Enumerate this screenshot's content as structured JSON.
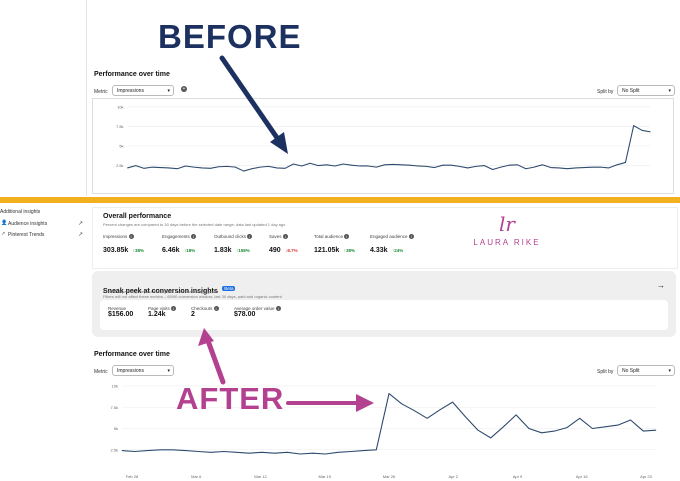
{
  "before_label": "BEFORE",
  "after_label": "AFTER",
  "colors": {
    "before_text": "#1d3160",
    "after_text": "#b4418f",
    "divider": "#f2b01e",
    "line": "#2e4a6e",
    "up": "#1a8a34",
    "down": "#d33333",
    "beta": "#1f6fe0",
    "logo": "#b4418f"
  },
  "top": {
    "title": "Performance over time",
    "metric_label": "Metric",
    "metric_value": "Impressions",
    "split_label": "Split by",
    "split_value": "No Split",
    "y_ticks": [
      "10k",
      "7.5k",
      "5k",
      "2.5k"
    ]
  },
  "sidebar": {
    "heading": "Additional insights",
    "items": [
      {
        "label": "Audience insights",
        "icon": "person-icon"
      },
      {
        "label": "Pinterest Trends",
        "icon": "trend-icon"
      }
    ]
  },
  "overall": {
    "title": "Overall performance",
    "subtitle": "Percent changes are compared to 30 days before the selected date range; data last updated 1 day ago",
    "metrics": [
      {
        "name": "Impressions",
        "value": "303.85k",
        "change": "38%",
        "dir": "up"
      },
      {
        "name": "Engagements",
        "value": "6.46k",
        "change": "18%",
        "dir": "up"
      },
      {
        "name": "Outbound clicks",
        "value": "1.83k",
        "change": "158%",
        "dir": "up"
      },
      {
        "name": "Saves",
        "value": "490",
        "change": "8.7%",
        "dir": "down"
      },
      {
        "name": "Total audience",
        "value": "121.05k",
        "change": "38%",
        "dir": "up"
      },
      {
        "name": "Engaged audience",
        "value": "4.33k",
        "change": "24%",
        "dir": "up"
      }
    ]
  },
  "logo": {
    "initials": "lr",
    "name": "LAURA RIKE"
  },
  "sneak": {
    "title": "Sneak peek at conversion insights",
    "badge": "Beta",
    "line1": "See the impact of your paid and organic content working together",
    "line2": "Filters will not affect these metrics – 60/90 conversion window, last 30 days, paid and organic content",
    "metrics": [
      {
        "name": "Revenue",
        "value": "$156.00"
      },
      {
        "name": "Page visits",
        "value": "1.24k"
      },
      {
        "name": "Checkouts",
        "value": "2"
      },
      {
        "name": "Average order value",
        "value": "$78.00"
      }
    ]
  },
  "bottom": {
    "title": "Performance over time",
    "metric_label": "Metric",
    "metric_value": "Impressions",
    "split_label": "Split by",
    "split_value": "No Split",
    "y_ticks": [
      "10k",
      "7.5k",
      "5k",
      "2.5k"
    ],
    "x_ticks": [
      "Feb 28",
      "Mar 6",
      "Mar 12",
      "Mar 19",
      "Mar 26",
      "Apr 2",
      "Apr 9",
      "Apr 16",
      "Apr 23"
    ]
  },
  "chart_data": [
    {
      "type": "line",
      "title": "Performance over time",
      "ylim": [
        0,
        10000
      ],
      "y_ticks": [
        "10k",
        "7.5k",
        "5k",
        "2.5k"
      ],
      "series": [
        {
          "values": [
            2200,
            2500,
            2150,
            2300,
            2250,
            2200,
            2100,
            2450,
            2300,
            2200,
            2150,
            2350,
            2400,
            2300,
            1800,
            2100,
            2300,
            2400,
            2200,
            2150,
            2700,
            2450,
            2800,
            2500,
            2600,
            2450,
            2700,
            2550,
            2450,
            2450,
            2300,
            2600,
            2650,
            2600,
            2550,
            2450,
            2400,
            2250,
            2550,
            2550,
            2400,
            2200,
            2400,
            2500,
            2000,
            2300,
            2550,
            2600,
            2100,
            2300,
            2600,
            2250,
            2200,
            2100,
            2200,
            2250,
            2300,
            2300,
            2200,
            2600,
            2900,
            7600,
            7000,
            6800
          ]
        }
      ],
      "grid": true
    },
    {
      "type": "line",
      "title": "Performance over time",
      "ylim": [
        0,
        10000
      ],
      "y_ticks": [
        "10k",
        "7.5k",
        "5k",
        "2.5k"
      ],
      "x_ticks": [
        "Feb 28",
        "Mar 6",
        "Mar 12",
        "Mar 19",
        "Mar 26",
        "Apr 2",
        "Apr 9",
        "Apr 16",
        "Apr 23"
      ],
      "series": [
        {
          "values": [
            2400,
            2300,
            2400,
            2500,
            2500,
            2400,
            2300,
            2200,
            2300,
            2200,
            2100,
            2200,
            2100,
            2200,
            2000,
            2100,
            2000,
            2200,
            2300,
            2400,
            2500,
            9100,
            7900,
            7100,
            6200,
            7200,
            8100,
            6400,
            4800,
            3900,
            5200,
            6600,
            5000,
            4500,
            4700,
            5100,
            6200,
            5000,
            5200,
            5400,
            6000,
            4700,
            4800
          ]
        }
      ],
      "grid": true
    }
  ]
}
